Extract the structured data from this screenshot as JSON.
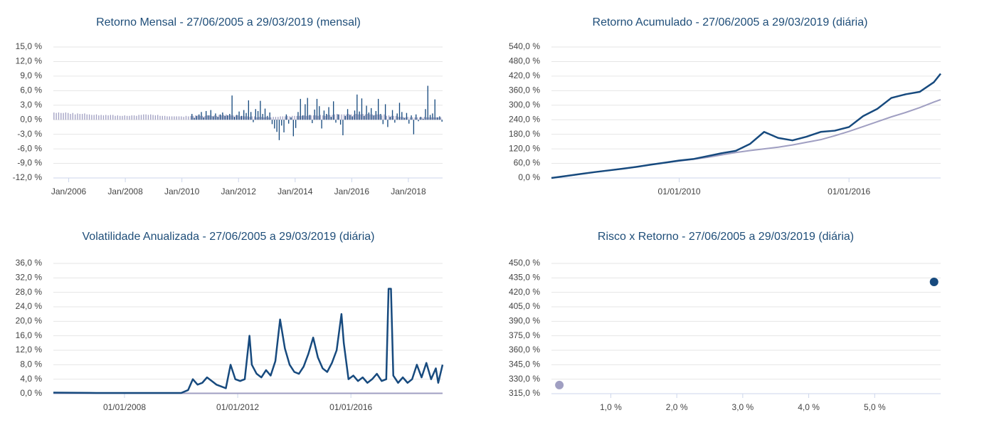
{
  "chart_data": [
    {
      "type": "bar",
      "title": "Retorno Mensal - 27/06/2005 a 29/03/2019 (mensal)",
      "categories": [
        null,
        null,
        null,
        null,
        null,
        null,
        "Jan/2006",
        null,
        null,
        null,
        null,
        null,
        null,
        null,
        null,
        null,
        null,
        null,
        null,
        null,
        null,
        null,
        null,
        null,
        null,
        null,
        null,
        null,
        null,
        null,
        "Jan/2008",
        null,
        null,
        null,
        null,
        null,
        null,
        null,
        null,
        null,
        null,
        null,
        null,
        null,
        null,
        null,
        null,
        null,
        null,
        null,
        null,
        null,
        null,
        null,
        "Jan/2010",
        null,
        null,
        null,
        null,
        null,
        null,
        null,
        null,
        null,
        null,
        null,
        null,
        null,
        null,
        null,
        null,
        null,
        null,
        null,
        null,
        null,
        null,
        null,
        "Jan/2012",
        null,
        null,
        null,
        null,
        null,
        null,
        null,
        null,
        null,
        null,
        null,
        null,
        null,
        null,
        null,
        null,
        null,
        null,
        null,
        null,
        null,
        null,
        null,
        "Jan/2014",
        null,
        null,
        null,
        null,
        null,
        null,
        null,
        null,
        null,
        null,
        null,
        null,
        null,
        null,
        null,
        null,
        null,
        null,
        null,
        null,
        null,
        null,
        null,
        "Jan/2016",
        null,
        null,
        null,
        null,
        null,
        null,
        null,
        null,
        null,
        null,
        null,
        null,
        null,
        null,
        null,
        null,
        null,
        null,
        null,
        null,
        null,
        null,
        null,
        "Jan/2018",
        null,
        null,
        null,
        null,
        null,
        null,
        null,
        null,
        null,
        null,
        null,
        null,
        null,
        null
      ],
      "series": [
        {
          "color": "#a09fc2",
          "values": [
            1.5,
            1.4,
            1.5,
            1.4,
            1.4,
            1.5,
            1.4,
            1.2,
            1.4,
            1.1,
            1.3,
            1.2,
            1.2,
            1.3,
            1.1,
            1.1,
            1.0,
            1.0,
            1.1,
            0.9,
            1.0,
            0.9,
            1.0,
            0.9,
            1.0,
            1.0,
            0.8,
            0.9,
            0.8,
            0.8,
            0.9,
            0.8,
            0.8,
            0.9,
            0.9,
            0.8,
            1.0,
            1.0,
            1.1,
            1.1,
            1.0,
            1.1,
            1.0,
            0.9,
            1.0,
            0.8,
            0.8,
            0.8,
            0.7,
            0.7,
            0.7,
            0.7,
            0.7,
            0.7,
            0.7,
            0.6,
            0.8,
            0.7,
            0.8,
            0.8,
            0.9,
            0.9,
            0.8,
            0.8,
            0.8,
            0.9,
            0.9,
            0.8,
            0.9,
            0.8,
            1.0,
            0.9,
            1.0,
            1.1,
            0.9,
            0.9,
            0.9,
            0.9,
            0.9,
            0.7,
            0.8,
            0.7,
            0.7,
            0.6,
            0.7,
            0.7,
            0.5,
            0.6,
            0.6,
            0.5,
            0.6,
            0.5,
            0.5,
            0.6,
            0.6,
            0.6,
            0.7,
            0.7,
            0.7,
            0.8,
            0.7,
            0.8,
            0.8,
            0.8,
            0.8,
            0.8,
            0.9,
            0.8,
            0.9,
            0.9,
            0.9,
            0.9,
            0.8,
            1.0,
            0.9,
            0.8,
            1.0,
            1.0,
            1.0,
            1.1,
            1.2,
            1.1,
            1.1,
            1.1,
            1.1,
            1.2,
            1.1,
            1.0,
            1.2,
            1.1,
            1.1,
            1.2,
            1.1,
            1.2,
            1.1,
            1.1,
            1.0,
            1.1,
            1.1,
            0.9,
            1.1,
            0.8,
            0.9,
            0.8,
            0.8,
            0.8,
            0.6,
            0.6,
            0.6,
            0.5,
            0.6,
            0.5,
            0.5,
            0.5,
            0.5,
            0.5,
            0.5,
            0.6,
            0.5,
            0.5,
            0.5,
            0.5,
            0.5,
            0.5,
            0.5
          ]
        },
        {
          "color": "#174a7e",
          "values": [
            null,
            null,
            null,
            null,
            null,
            null,
            null,
            null,
            null,
            null,
            null,
            null,
            null,
            null,
            null,
            null,
            null,
            null,
            null,
            null,
            null,
            null,
            null,
            null,
            null,
            null,
            null,
            null,
            null,
            null,
            null,
            null,
            null,
            null,
            null,
            null,
            null,
            null,
            null,
            null,
            null,
            null,
            null,
            null,
            null,
            null,
            null,
            null,
            null,
            null,
            null,
            null,
            null,
            null,
            null,
            null,
            null,
            null,
            1.2,
            0.4,
            0.8,
            1.1,
            1.6,
            0.5,
            1.8,
            0.9,
            2.0,
            0.7,
            1.3,
            0.6,
            1.1,
            1.5,
            0.8,
            0.9,
            1.2,
            5.0,
            0.6,
            1.0,
            1.7,
            0.8,
            2.0,
            1.4,
            4.0,
            1.6,
            -0.5,
            2.2,
            1.8,
            3.9,
            1.2,
            2.3,
            0.8,
            1.5,
            -0.9,
            -1.8,
            -2.5,
            -4.2,
            -1.2,
            -2.6,
            1.1,
            -0.8,
            0.5,
            -3.4,
            -1.7,
            1.6,
            4.3,
            0.9,
            3.2,
            4.5,
            1.0,
            -0.7,
            2.1,
            4.3,
            2.8,
            -1.8,
            1.9,
            1.2,
            2.6,
            0.6,
            3.8,
            -0.6,
            1.1,
            -1.0,
            -3.2,
            0.8,
            2.2,
            1.0,
            0.7,
            1.9,
            5.2,
            1.7,
            4.4,
            0.8,
            2.9,
            1.5,
            2.4,
            0.9,
            1.8,
            4.3,
            1.2,
            -0.9,
            3.2,
            -1.5,
            0.6,
            2.0,
            -0.6,
            1.3,
            3.5,
            1.6,
            0.4,
            1.4,
            -0.8,
            0.9,
            -3.0,
            1.1,
            -0.3,
            0.6,
            0.2,
            2.2,
            7.0,
            1.0,
            1.3,
            4.2,
            0.5,
            0.7,
            -0.4
          ]
        }
      ],
      "ylim": [
        -12,
        15
      ],
      "yticks": [
        {
          "value": 15,
          "label": "15,0 %"
        },
        {
          "value": 12,
          "label": "12,0 %"
        },
        {
          "value": 9,
          "label": "9,0 %"
        },
        {
          "value": 6,
          "label": "6,0 %"
        },
        {
          "value": 3,
          "label": "3,0 %"
        },
        {
          "value": 0,
          "label": "0,0 %"
        },
        {
          "value": -3,
          "label": "-3,0 %"
        },
        {
          "value": -6,
          "label": "-6,0 %"
        },
        {
          "value": -9,
          "label": "-9,0 %"
        },
        {
          "value": -12,
          "label": "-12,0 %"
        }
      ],
      "grid": true
    },
    {
      "type": "line",
      "title": "Retorno Acumulado - 27/06/2005 a 29/03/2019 (diária)",
      "x": [
        "27/06/2005",
        "01/01/2006",
        "01/07/2006",
        "01/01/2007",
        "01/07/2007",
        "01/01/2008",
        "01/07/2008",
        "01/01/2009",
        "01/07/2009",
        "01/01/2010",
        "01/07/2010",
        "01/01/2011",
        "01/07/2011",
        "01/01/2012",
        "01/07/2012",
        "01/01/2013",
        "01/07/2013",
        "01/01/2014",
        "01/07/2014",
        "01/01/2015",
        "01/07/2015",
        "01/01/2016",
        "01/07/2016",
        "01/01/2017",
        "01/07/2017",
        "01/01/2018",
        "01/07/2018",
        "01/01/2019",
        "29/03/2019"
      ],
      "series": [
        {
          "color": "#a09fc2",
          "values": [
            0,
            8,
            16,
            24,
            31,
            38,
            46,
            55,
            63,
            70,
            77,
            85,
            95,
            105,
            113,
            120,
            127,
            136,
            147,
            158,
            174,
            192,
            212,
            232,
            252,
            270,
            290,
            313,
            323
          ]
        },
        {
          "color": "#174a7e",
          "values": [
            0,
            8,
            16,
            24,
            31,
            38,
            46,
            55,
            63,
            72,
            78,
            90,
            102,
            112,
            140,
            190,
            165,
            155,
            170,
            190,
            195,
            210,
            255,
            285,
            330,
            345,
            355,
            395,
            430
          ]
        }
      ],
      "xlim": [
        "27/06/2005",
        "29/03/2019"
      ],
      "xticks": [
        "01/01/2010",
        "01/01/2016"
      ],
      "ylim": [
        0,
        540
      ],
      "yticks": [
        {
          "value": 540,
          "label": "540,0 %"
        },
        {
          "value": 480,
          "label": "480,0 %"
        },
        {
          "value": 420,
          "label": "420,0 %"
        },
        {
          "value": 360,
          "label": "360,0 %"
        },
        {
          "value": 300,
          "label": "300,0 %"
        },
        {
          "value": 240,
          "label": "240,0 %"
        },
        {
          "value": 180,
          "label": "180,0 %"
        },
        {
          "value": 120,
          "label": "120,0 %"
        },
        {
          "value": 60,
          "label": "60,0 %"
        },
        {
          "value": 0,
          "label": "0,0 %"
        }
      ],
      "grid": true
    },
    {
      "type": "line",
      "title": "Volatilidade Anualizada - 27/06/2005 a 29/03/2019 (diária)",
      "x": [
        "27/06/2005",
        "01/01/2007",
        "01/01/2008",
        "01/01/2009",
        "01/01/2010",
        "01/04/2010",
        "01/06/2010",
        "01/08/2010",
        "01/10/2010",
        "01/12/2010",
        "01/02/2011",
        "01/04/2011",
        "01/06/2011",
        "01/08/2011",
        "01/10/2011",
        "01/12/2011",
        "01/02/2012",
        "01/04/2012",
        "01/06/2012",
        "01/07/2012",
        "01/09/2012",
        "01/11/2012",
        "01/01/2013",
        "01/03/2013",
        "01/05/2013",
        "01/07/2013",
        "01/09/2013",
        "01/11/2013",
        "01/01/2014",
        "01/03/2014",
        "01/05/2014",
        "01/07/2014",
        "01/09/2014",
        "01/11/2014",
        "01/01/2015",
        "01/03/2015",
        "01/05/2015",
        "01/07/2015",
        "01/09/2015",
        "01/10/2015",
        "01/12/2015",
        "01/02/2016",
        "01/04/2016",
        "01/06/2016",
        "01/08/2016",
        "01/10/2016",
        "01/12/2016",
        "01/02/2017",
        "01/04/2017",
        "01/05/2017",
        "01/06/2017",
        "01/07/2017",
        "01/09/2017",
        "01/11/2017",
        "01/01/2018",
        "01/03/2018",
        "01/05/2018",
        "01/07/2018",
        "01/09/2018",
        "01/11/2018",
        "01/01/2019",
        "01/02/2019",
        "29/03/2019"
      ],
      "series": [
        {
          "color": "#a09fc2",
          "values": [
            0.1,
            0.1,
            0.1,
            0.1,
            0.1,
            0.1,
            0.1,
            0.1,
            0.1,
            0.1,
            0.1,
            0.1,
            0.1,
            0.1,
            0.1,
            0.1,
            0.1,
            0.1,
            0.1,
            0.1,
            0.1,
            0.1,
            0.1,
            0.1,
            0.1,
            0.1,
            0.1,
            0.1,
            0.1,
            0.1,
            0.1,
            0.1,
            0.1,
            0.1,
            0.1,
            0.1,
            0.1,
            0.1,
            0.1,
            0.1,
            0.1,
            0.1,
            0.1,
            0.1,
            0.1,
            0.1,
            0.1,
            0.1,
            0.1,
            0.1,
            0.1,
            0.1,
            0.1,
            0.1,
            0.1,
            0.1,
            0.1,
            0.1,
            0.1,
            0.1,
            0.1,
            0.1,
            0.1
          ]
        },
        {
          "color": "#174a7e",
          "values": [
            0.3,
            0.2,
            0.2,
            0.2,
            0.2,
            1.0,
            4.0,
            2.5,
            3.0,
            4.5,
            3.5,
            2.5,
            2.0,
            1.5,
            8.0,
            4.0,
            3.5,
            4.0,
            16.0,
            8.0,
            5.5,
            4.5,
            6.5,
            5.0,
            9.0,
            20.5,
            12.5,
            8.0,
            6.0,
            5.5,
            7.5,
            11.0,
            15.5,
            10.0,
            7.0,
            6.0,
            8.5,
            12.0,
            22.0,
            14.0,
            4.0,
            5.0,
            3.5,
            4.5,
            3.0,
            4.0,
            5.5,
            3.5,
            4.0,
            29.0,
            29.0,
            5.0,
            3.0,
            4.5,
            3.0,
            4.0,
            8.0,
            4.5,
            8.5,
            4.0,
            7.0,
            3.0,
            8.0
          ]
        }
      ],
      "xlim": [
        "27/06/2005",
        "29/03/2019"
      ],
      "xticks": [
        "01/01/2008",
        "01/01/2012",
        "01/01/2016"
      ],
      "ylim": [
        0,
        36
      ],
      "yticks": [
        {
          "value": 36,
          "label": "36,0 %"
        },
        {
          "value": 32,
          "label": "32,0 %"
        },
        {
          "value": 28,
          "label": "28,0 %"
        },
        {
          "value": 24,
          "label": "24,0 %"
        },
        {
          "value": 20,
          "label": "20,0 %"
        },
        {
          "value": 16,
          "label": "16,0 %"
        },
        {
          "value": 12,
          "label": "12,0 %"
        },
        {
          "value": 8,
          "label": "8,0 %"
        },
        {
          "value": 4,
          "label": "4,0 %"
        },
        {
          "value": 0,
          "label": "0,0 %"
        }
      ],
      "grid": true
    },
    {
      "type": "scatter",
      "title": "Risco x Retorno - 27/06/2005 a 29/03/2019 (diária)",
      "series": [
        {
          "color": "#a09fc2",
          "x": [
            0.22
          ],
          "values": [
            323.9
          ]
        },
        {
          "color": "#174a7e",
          "x": [
            5.9
          ],
          "values": [
            430.8
          ]
        }
      ],
      "xlim": [
        0.1,
        6.0
      ],
      "xticks": [
        {
          "value": 1,
          "label": "1,0 %"
        },
        {
          "value": 2,
          "label": "2,0 %"
        },
        {
          "value": 3,
          "label": "3,0 %"
        },
        {
          "value": 4,
          "label": "4,0 %"
        },
        {
          "value": 5,
          "label": "5,0 %"
        }
      ],
      "ylim": [
        315,
        450
      ],
      "yticks": [
        {
          "value": 450,
          "label": "450,0 %"
        },
        {
          "value": 435,
          "label": "435,0 %"
        },
        {
          "value": 420,
          "label": "420,0 %"
        },
        {
          "value": 405,
          "label": "405,0 %"
        },
        {
          "value": 390,
          "label": "390,0 %"
        },
        {
          "value": 375,
          "label": "375,0 %"
        },
        {
          "value": 360,
          "label": "360,0 %"
        },
        {
          "value": 345,
          "label": "345,0 %"
        },
        {
          "value": 330,
          "label": "330,0 %"
        },
        {
          "value": 315,
          "label": "315,0 %"
        }
      ],
      "grid": true
    }
  ]
}
